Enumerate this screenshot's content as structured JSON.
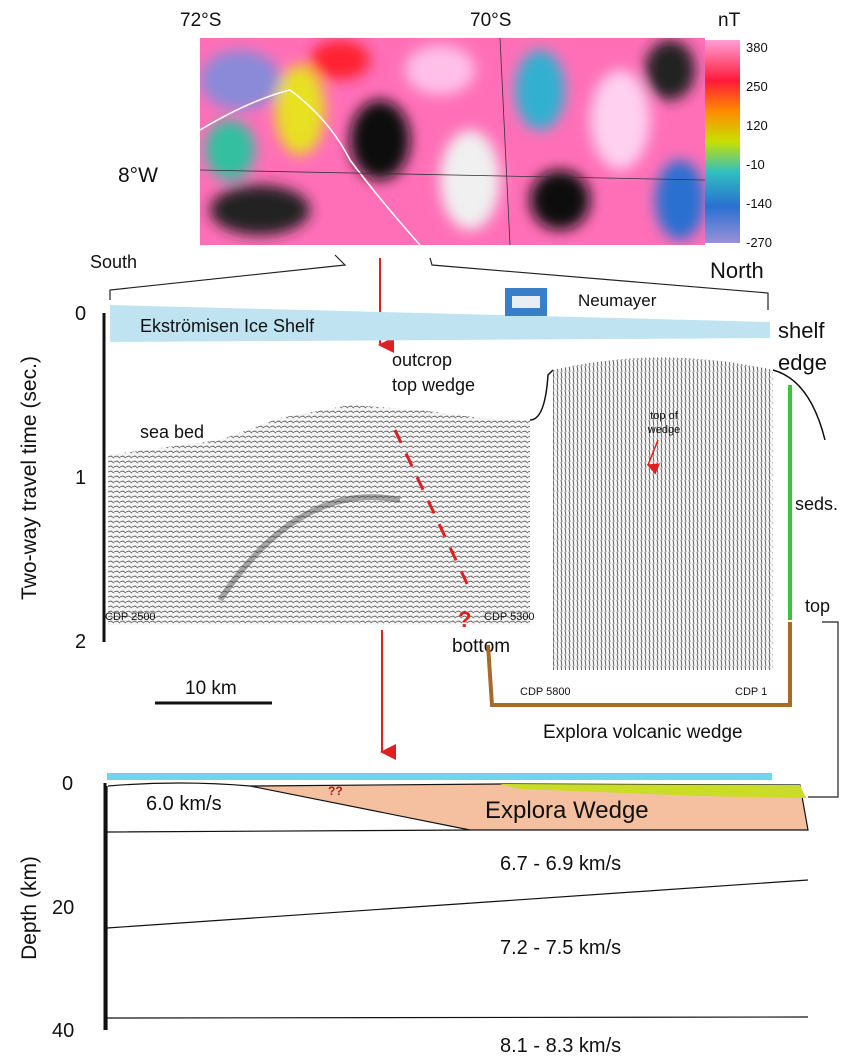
{
  "map": {
    "lat_labels": [
      "72°S",
      "70°S"
    ],
    "lon_label": "8°W",
    "colorbar": {
      "unit": "nT",
      "ticks": [
        "380",
        "250",
        "120",
        "-10",
        "-140",
        "-270"
      ]
    }
  },
  "profile": {
    "south": "South",
    "north": "North",
    "station": "Neumayer",
    "ice_shelf": "Ekströmisen Ice Shelf",
    "shelf_edge": [
      "shelf",
      "edge"
    ],
    "outcrop": [
      "outcrop",
      "top wedge"
    ],
    "sea_bed": "sea bed",
    "time_axis": {
      "title": "Two-way travel time (sec.)",
      "ticks": [
        "0",
        "1",
        "2"
      ]
    },
    "cdp_labels": [
      "CDP 2500",
      "CDP 5300",
      "CDP 5800",
      "CDP 1"
    ],
    "question": "?",
    "bottom": "bottom",
    "top_of_wedge": [
      "top of",
      "wedge"
    ],
    "seds": "seds.",
    "top": "top",
    "scale": "10 km",
    "wedge_label": "Explora volcanic wedge"
  },
  "depth_section": {
    "axis": {
      "title": "Depth (km)",
      "ticks": [
        "0",
        "20",
        "40"
      ]
    },
    "question": "??",
    "wedge": "Explora Wedge",
    "velocities": [
      "6.0 km/s",
      "6.7 - 6.9 km/s",
      "7.2 - 7.5 km/s",
      "8.1 - 8.3 km/s"
    ]
  }
}
